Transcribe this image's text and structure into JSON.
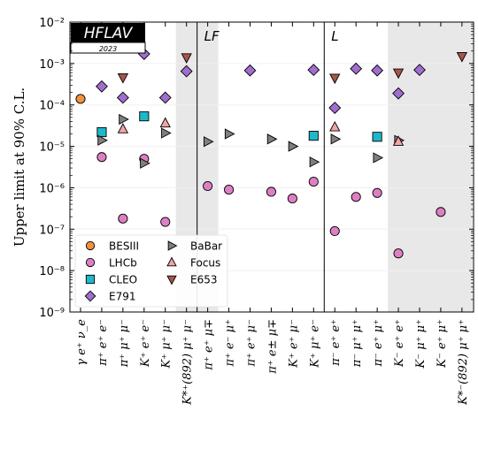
{
  "chart_data": {
    "type": "scatter",
    "ylabel": "Upper limit at 90% C.L.",
    "yscale": "log",
    "ylim": [
      1e-09,
      0.01
    ],
    "y_tick_labels": [
      "10⁻⁹",
      "10⁻⁸",
      "10⁻⁷",
      "10⁻⁶",
      "10⁻⁵",
      "10⁻⁴",
      "10⁻³",
      "10⁻²"
    ],
    "grid": true,
    "legend_position": "lower-left",
    "logo": {
      "name": "HFLAV",
      "year": "2023"
    },
    "categories": [
      "γ e⁺ ν_e",
      "π⁺ e⁺ e⁻",
      "π⁺ μ⁺ μ⁻",
      "K⁺ e⁺ e⁻",
      "K⁺ μ⁺ μ⁻",
      "K*⁺(892) μ⁺ μ⁻",
      "π⁺ e⁺ μ∓",
      "π⁺ e⁻ μ⁺",
      "π⁺ e⁺ μ⁻",
      "π⁺ e± μ∓",
      "K⁺ e⁺ μ⁻",
      "K⁺ μ⁺ e⁻",
      "π⁻ e⁺ e⁺",
      "π⁻ μ⁺ μ⁺",
      "π⁻ e⁺ μ⁺",
      "K⁻ e⁺ e⁺",
      "K⁻ μ⁺ μ⁺",
      "K⁻ e⁺ μ⁺",
      "K*⁻(892) μ⁺ μ⁺"
    ],
    "regions": [
      {
        "label": "LF",
        "start_index": 5.5,
        "end_index": 11.5
      },
      {
        "label": "L",
        "start_index": 11.5,
        "end_index": 18.5
      }
    ],
    "shaded_bands": [
      [
        4.5,
        6.5
      ],
      [
        14.5,
        18.5
      ]
    ],
    "series": [
      {
        "name": "BESIII",
        "marker": "circle",
        "color": "#f0923e",
        "points": [
          [
            0,
            0.00014
          ]
        ]
      },
      {
        "name": "LHCb",
        "marker": "circle",
        "color": "#de7fc4",
        "points": [
          [
            1,
            5.5e-06
          ],
          [
            2,
            1.8e-07
          ],
          [
            3,
            5e-06
          ],
          [
            4,
            1.5e-07
          ],
          [
            6,
            1.1e-06
          ],
          [
            7,
            9e-07
          ],
          [
            9,
            8e-07
          ],
          [
            10,
            5.5e-07
          ],
          [
            11,
            1.4e-06
          ],
          [
            12,
            9e-08
          ],
          [
            13,
            6e-07
          ],
          [
            14,
            7.5e-07
          ],
          [
            15,
            2.6e-08
          ],
          [
            17,
            2.6e-07
          ]
        ]
      },
      {
        "name": "CLEO",
        "marker": "square",
        "color": "#1fb8c8",
        "points": [
          [
            1,
            2.2e-05
          ],
          [
            3,
            5.3e-05
          ],
          [
            11,
            1.8e-05
          ],
          [
            14,
            1.7e-05
          ]
        ]
      },
      {
        "name": "E791",
        "marker": "diamond",
        "color": "#9f6ecf",
        "points": [
          [
            1,
            0.00028
          ],
          [
            2,
            0.00015
          ],
          [
            3,
            0.0017
          ],
          [
            4,
            0.00015
          ],
          [
            5,
            0.00065
          ],
          [
            8,
            0.00068
          ],
          [
            11,
            0.0007
          ],
          [
            12,
            8.5e-05
          ],
          [
            13,
            0.00075
          ],
          [
            14,
            0.00068
          ],
          [
            15,
            0.00019
          ],
          [
            16,
            0.0007
          ]
        ]
      },
      {
        "name": "BaBar",
        "marker": "triangle-right",
        "color": "#7f7f7f",
        "points": [
          [
            1,
            1.4e-05
          ],
          [
            2,
            4.5e-05
          ],
          [
            3,
            3.9e-06
          ],
          [
            4,
            2.1e-05
          ],
          [
            6,
            1.3e-05
          ],
          [
            7,
            2e-05
          ],
          [
            9,
            1.5e-05
          ],
          [
            10,
            1e-05
          ],
          [
            11,
            4.2e-06
          ],
          [
            12,
            1.5e-05
          ],
          [
            14,
            5.3e-06
          ],
          [
            15,
            1.4e-05
          ]
        ]
      },
      {
        "name": "Focus",
        "marker": "triangle-up",
        "color": "#f6a3a3",
        "points": [
          [
            2,
            2.6e-05
          ],
          [
            4,
            3.6e-05
          ],
          [
            12,
            2.9e-05
          ],
          [
            15,
            1.3e-05
          ]
        ]
      },
      {
        "name": "E653",
        "marker": "triangle-down",
        "color": "#a6564a",
        "points": [
          [
            2,
            0.00046
          ],
          [
            5,
            0.0014
          ],
          [
            12,
            0.00045
          ],
          [
            15,
            0.0006
          ],
          [
            18,
            0.0015
          ]
        ]
      }
    ]
  }
}
